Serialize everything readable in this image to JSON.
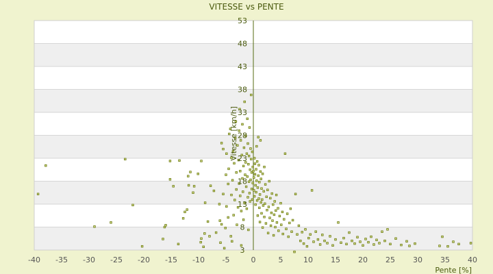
{
  "chart_data": {
    "type": "scatter",
    "title": "VITESSE vs PENTE",
    "xlabel": "Pente [%]",
    "ylabel": "Vitesse [km/h]",
    "xlim": [
      -40,
      40
    ],
    "ylim": [
      3,
      53
    ],
    "x_ticks": [
      "-40",
      "-35",
      "-30",
      "-25",
      "-20",
      "-15",
      "-10",
      "-5",
      "0",
      "5",
      "10",
      "15",
      "20",
      "25",
      "30",
      "35",
      "40"
    ],
    "y_ticks": [
      "3",
      "8",
      "13",
      "18",
      "23",
      "28",
      "33",
      "38",
      "43",
      "48",
      "53"
    ],
    "grid": true,
    "background_bands": [
      "#ffffff",
      "#efefef"
    ],
    "point_color": "#6b7a10",
    "point_fill": "#d7df8f",
    "points": [
      [
        -39.3,
        15.2
      ],
      [
        -37.9,
        21.4
      ],
      [
        -29.0,
        8.1
      ],
      [
        -26.0,
        9.0
      ],
      [
        -23.4,
        22.8
      ],
      [
        -22.0,
        12.8
      ],
      [
        -20.3,
        3.8
      ],
      [
        -16.5,
        5.4
      ],
      [
        -16.2,
        8.0
      ],
      [
        -16.0,
        8.4
      ],
      [
        -15.2,
        18.4
      ],
      [
        -15.2,
        22.4
      ],
      [
        -14.6,
        16.9
      ],
      [
        -13.7,
        4.3
      ],
      [
        -13.5,
        22.5
      ],
      [
        -12.8,
        9.9
      ],
      [
        -12.5,
        11.3
      ],
      [
        -12.1,
        11.8
      ],
      [
        -11.9,
        19.1
      ],
      [
        -11.8,
        17.1
      ],
      [
        -11.5,
        20.0
      ],
      [
        -11.0,
        15.5
      ],
      [
        -10.8,
        16.9
      ],
      [
        -10.1,
        19.6
      ],
      [
        -9.6,
        4.7
      ],
      [
        -9.5,
        5.5
      ],
      [
        -9.5,
        22.4
      ],
      [
        -9.1,
        3.7
      ],
      [
        -8.9,
        6.6
      ],
      [
        -8.8,
        13.3
      ],
      [
        -8.3,
        9.2
      ],
      [
        -8.0,
        6.0
      ],
      [
        -7.8,
        17.0
      ],
      [
        -7.2,
        15.9
      ],
      [
        -6.8,
        6.8
      ],
      [
        -6.2,
        13.0
      ],
      [
        -6.1,
        9.4
      ],
      [
        -6.0,
        4.6
      ],
      [
        -5.8,
        8.6
      ],
      [
        -5.8,
        26.3
      ],
      [
        -5.5,
        15.2
      ],
      [
        -5.5,
        25.0
      ],
      [
        -5.3,
        3.4
      ],
      [
        -5.1,
        7.8
      ],
      [
        -5.0,
        19.4
      ],
      [
        -4.9,
        24.0
      ],
      [
        -4.9,
        12.5
      ],
      [
        -4.6,
        17.4
      ],
      [
        -4.6,
        10.1
      ],
      [
        -4.5,
        20.7
      ],
      [
        -4.4,
        28.3
      ],
      [
        -4.2,
        29.4
      ],
      [
        -4.1,
        6.0
      ],
      [
        -4.0,
        23.1
      ],
      [
        -4.0,
        15.0
      ],
      [
        -3.9,
        4.9
      ],
      [
        -3.8,
        18.2
      ],
      [
        -3.7,
        24.5
      ],
      [
        -3.6,
        10.6
      ],
      [
        -3.5,
        21.9
      ],
      [
        -3.4,
        13.9
      ],
      [
        -3.3,
        27.4
      ],
      [
        -3.2,
        31.0
      ],
      [
        -3.1,
        16.2
      ],
      [
        -3.1,
        19.9
      ],
      [
        -3.0,
        8.5
      ],
      [
        -2.9,
        25.8
      ],
      [
        -2.8,
        12.3
      ],
      [
        -2.7,
        22.6
      ],
      [
        -2.6,
        29.0
      ],
      [
        -2.6,
        17.5
      ],
      [
        -2.5,
        33.7
      ],
      [
        -2.4,
        14.8
      ],
      [
        -2.4,
        20.2
      ],
      [
        -2.3,
        26.9
      ],
      [
        -2.2,
        4.0
      ],
      [
        -2.2,
        11.5
      ],
      [
        -2.1,
        23.7
      ],
      [
        -2.0,
        18.6
      ],
      [
        -2.0,
        30.4
      ],
      [
        -1.9,
        15.7
      ],
      [
        -1.8,
        21.3
      ],
      [
        -1.8,
        9.6
      ],
      [
        -1.7,
        25.3
      ],
      [
        -1.6,
        35.3
      ],
      [
        -1.6,
        13.2
      ],
      [
        -1.5,
        19.4
      ],
      [
        -1.4,
        27.9
      ],
      [
        -1.4,
        22.1
      ],
      [
        -1.3,
        16.8
      ],
      [
        -1.2,
        24.0
      ],
      [
        -1.2,
        12.0
      ],
      [
        -1.1,
        31.6
      ],
      [
        -1.1,
        19.0
      ],
      [
        -1.0,
        14.5
      ],
      [
        -1.0,
        26.2
      ],
      [
        -0.9,
        21.7
      ],
      [
        -0.9,
        7.4
      ],
      [
        -0.8,
        17.9
      ],
      [
        -0.8,
        23.5
      ],
      [
        -0.7,
        29.7
      ],
      [
        -0.7,
        15.4
      ],
      [
        -0.6,
        20.5
      ],
      [
        -0.6,
        13.6
      ],
      [
        -0.5,
        25.1
      ],
      [
        -0.5,
        18.3
      ],
      [
        -0.4,
        22.8
      ],
      [
        -0.4,
        36.8
      ],
      [
        -0.3,
        16.3
      ],
      [
        -0.3,
        19.9
      ],
      [
        -0.2,
        24.4
      ],
      [
        -0.2,
        14.0
      ],
      [
        -0.1,
        21.1
      ],
      [
        -0.1,
        17.6
      ],
      [
        0.0,
        20.2
      ],
      [
        0.1,
        16.0
      ],
      [
        0.1,
        18.8
      ],
      [
        0.2,
        23.0
      ],
      [
        0.2,
        14.7
      ],
      [
        0.3,
        19.5
      ],
      [
        0.3,
        21.8
      ],
      [
        0.4,
        17.1
      ],
      [
        0.4,
        12.9
      ],
      [
        0.5,
        20.6
      ],
      [
        0.5,
        15.6
      ],
      [
        0.6,
        18.1
      ],
      [
        0.6,
        25.6
      ],
      [
        0.7,
        13.8
      ],
      [
        0.7,
        22.3
      ],
      [
        0.8,
        16.6
      ],
      [
        0.8,
        10.5
      ],
      [
        0.9,
        19.2
      ],
      [
        0.9,
        27.6
      ],
      [
        1.0,
        14.2
      ],
      [
        1.0,
        21.5
      ],
      [
        1.1,
        12.2
      ],
      [
        1.1,
        17.8
      ],
      [
        1.2,
        15.1
      ],
      [
        1.2,
        9.1
      ],
      [
        1.3,
        20.1
      ],
      [
        1.3,
        26.9
      ],
      [
        1.4,
        13.4
      ],
      [
        1.4,
        18.5
      ],
      [
        1.5,
        11.0
      ],
      [
        1.5,
        16.4
      ],
      [
        1.6,
        14.0
      ],
      [
        1.7,
        7.9
      ],
      [
        1.7,
        19.6
      ],
      [
        1.8,
        12.7
      ],
      [
        1.9,
        15.8
      ],
      [
        2.0,
        10.2
      ],
      [
        2.0,
        21.1
      ],
      [
        2.1,
        13.1
      ],
      [
        2.2,
        17.3
      ],
      [
        2.3,
        8.8
      ],
      [
        2.4,
        14.6
      ],
      [
        2.5,
        11.7
      ],
      [
        2.6,
        16.1
      ],
      [
        2.7,
        6.7
      ],
      [
        2.8,
        12.4
      ],
      [
        2.9,
        18.0
      ],
      [
        3.0,
        10.0
      ],
      [
        3.1,
        14.3
      ],
      [
        3.2,
        8.3
      ],
      [
        3.3,
        11.1
      ],
      [
        3.4,
        15.3
      ],
      [
        3.5,
        9.4
      ],
      [
        3.6,
        12.9
      ],
      [
        3.7,
        6.2
      ],
      [
        3.8,
        10.7
      ],
      [
        3.9,
        13.6
      ],
      [
        4.0,
        8.0
      ],
      [
        4.1,
        11.6
      ],
      [
        4.2,
        15.0
      ],
      [
        4.3,
        9.0
      ],
      [
        4.5,
        12.1
      ],
      [
        4.6,
        7.2
      ],
      [
        4.8,
        10.4
      ],
      [
        5.0,
        13.2
      ],
      [
        5.1,
        8.5
      ],
      [
        5.3,
        11.3
      ],
      [
        5.4,
        6.5
      ],
      [
        5.6,
        9.7
      ],
      [
        5.8,
        24.0
      ],
      [
        6.0,
        7.6
      ],
      [
        6.2,
        10.9
      ],
      [
        6.4,
        5.9
      ],
      [
        6.6,
        8.9
      ],
      [
        6.8,
        12.0
      ],
      [
        7.0,
        7.0
      ],
      [
        7.2,
        9.5
      ],
      [
        7.5,
        2.6
      ],
      [
        7.7,
        15.2
      ],
      [
        8.0,
        6.4
      ],
      [
        8.3,
        8.3
      ],
      [
        8.6,
        5.0
      ],
      [
        8.9,
        6.9
      ],
      [
        9.2,
        4.4
      ],
      [
        9.5,
        7.5
      ],
      [
        9.8,
        3.8
      ],
      [
        10.1,
        5.6
      ],
      [
        10.4,
        6.4
      ],
      [
        10.7,
        16.0
      ],
      [
        11.0,
        4.8
      ],
      [
        11.4,
        7.0
      ],
      [
        11.8,
        5.3
      ],
      [
        12.2,
        4.2
      ],
      [
        12.6,
        6.3
      ],
      [
        13.0,
        5.0
      ],
      [
        13.5,
        4.5
      ],
      [
        14.0,
        6.0
      ],
      [
        14.5,
        4.0
      ],
      [
        15.0,
        5.3
      ],
      [
        15.5,
        9.0
      ],
      [
        16.0,
        4.6
      ],
      [
        16.5,
        5.6
      ],
      [
        17.0,
        4.3
      ],
      [
        17.5,
        6.8
      ],
      [
        18.0,
        5.0
      ],
      [
        18.5,
        4.4
      ],
      [
        19.0,
        5.8
      ],
      [
        19.5,
        4.8
      ],
      [
        20.0,
        4.0
      ],
      [
        20.5,
        5.4
      ],
      [
        21.0,
        4.7
      ],
      [
        21.5,
        5.9
      ],
      [
        22.0,
        4.2
      ],
      [
        22.5,
        5.2
      ],
      [
        23.0,
        4.5
      ],
      [
        23.5,
        7.0
      ],
      [
        24.0,
        5.0
      ],
      [
        24.5,
        7.5
      ],
      [
        25.0,
        4.3
      ],
      [
        26.0,
        5.5
      ],
      [
        27.0,
        4.1
      ],
      [
        28.0,
        4.9
      ],
      [
        28.5,
        3.9
      ],
      [
        29.5,
        4.4
      ],
      [
        34.0,
        3.9
      ],
      [
        34.5,
        5.9
      ],
      [
        35.5,
        3.8
      ],
      [
        36.5,
        4.8
      ],
      [
        37.5,
        4.3
      ],
      [
        39.7,
        4.5
      ]
    ]
  }
}
